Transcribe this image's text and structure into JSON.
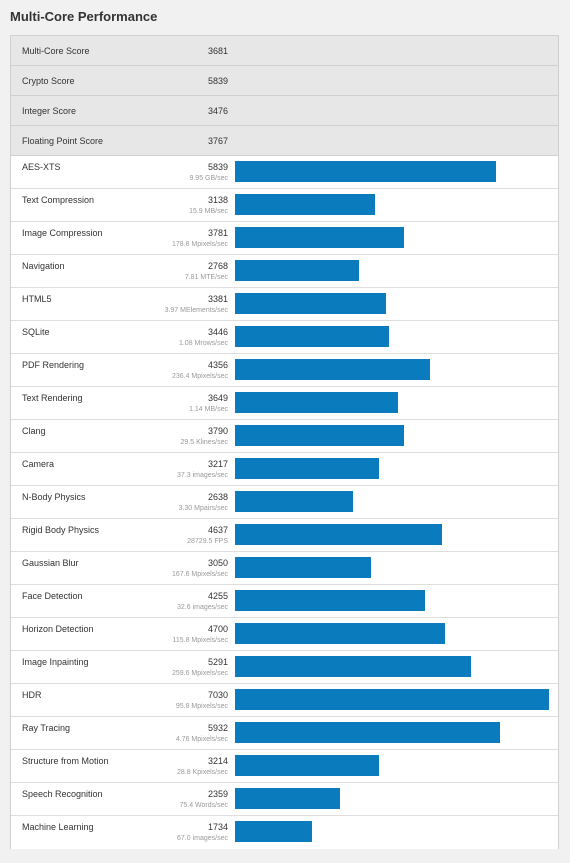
{
  "title": "Multi-Core Performance",
  "colors": {
    "bar": "#0a7bbd",
    "summary_bg": "#e7e7e7"
  },
  "bar_max_score": 7030,
  "summary": [
    {
      "name": "Multi-Core Score",
      "score": "3681"
    },
    {
      "name": "Crypto Score",
      "score": "5839"
    },
    {
      "name": "Integer Score",
      "score": "3476"
    },
    {
      "name": "Floating Point Score",
      "score": "3767"
    }
  ],
  "workloads": [
    {
      "name": "AES-XTS",
      "score": "5839",
      "unit": "9.95 GB/sec",
      "value": 5839
    },
    {
      "name": "Text Compression",
      "score": "3138",
      "unit": "15.9 MB/sec",
      "value": 3138
    },
    {
      "name": "Image Compression",
      "score": "3781",
      "unit": "178.8 Mpixels/sec",
      "value": 3781
    },
    {
      "name": "Navigation",
      "score": "2768",
      "unit": "7.81 MTE/sec",
      "value": 2768
    },
    {
      "name": "HTML5",
      "score": "3381",
      "unit": "3.97 MElements/sec",
      "value": 3381
    },
    {
      "name": "SQLite",
      "score": "3446",
      "unit": "1.08 Mrows/sec",
      "value": 3446
    },
    {
      "name": "PDF Rendering",
      "score": "4356",
      "unit": "236.4 Mpixels/sec",
      "value": 4356
    },
    {
      "name": "Text Rendering",
      "score": "3649",
      "unit": "1.14 MB/sec",
      "value": 3649
    },
    {
      "name": "Clang",
      "score": "3790",
      "unit": "29.5 Klines/sec",
      "value": 3790
    },
    {
      "name": "Camera",
      "score": "3217",
      "unit": "37.3 images/sec",
      "value": 3217
    },
    {
      "name": "N-Body Physics",
      "score": "2638",
      "unit": "3.30 Mpairs/sec",
      "value": 2638
    },
    {
      "name": "Rigid Body Physics",
      "score": "4637",
      "unit": "28729.5 FPS",
      "value": 4637
    },
    {
      "name": "Gaussian Blur",
      "score": "3050",
      "unit": "167.6 Mpixels/sec",
      "value": 3050
    },
    {
      "name": "Face Detection",
      "score": "4255",
      "unit": "32.6 images/sec",
      "value": 4255
    },
    {
      "name": "Horizon Detection",
      "score": "4700",
      "unit": "115.8 Mpixels/sec",
      "value": 4700
    },
    {
      "name": "Image Inpainting",
      "score": "5291",
      "unit": "259.6 Mpixels/sec",
      "value": 5291
    },
    {
      "name": "HDR",
      "score": "7030",
      "unit": "95.8 Mpixels/sec",
      "value": 7030
    },
    {
      "name": "Ray Tracing",
      "score": "5932",
      "unit": "4.76 Mpixels/sec",
      "value": 5932
    },
    {
      "name": "Structure from Motion",
      "score": "3214",
      "unit": "28.8 Kpixels/sec",
      "value": 3214
    },
    {
      "name": "Speech Recognition",
      "score": "2359",
      "unit": "75.4 Words/sec",
      "value": 2359
    },
    {
      "name": "Machine Learning",
      "score": "1734",
      "unit": "67.0 images/sec",
      "value": 1734
    }
  ]
}
